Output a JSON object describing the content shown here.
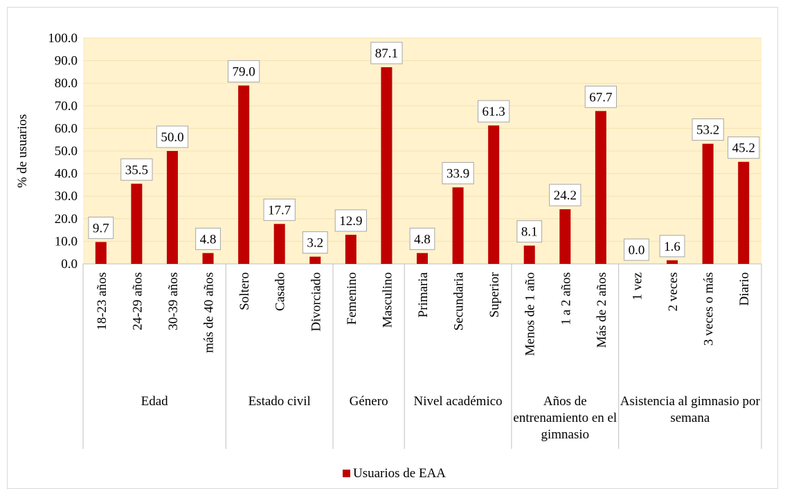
{
  "chart_data": {
    "type": "bar",
    "y_label": "% de usuarios",
    "groups": [
      {
        "name": "Edad",
        "categories": [
          "18-23 años",
          "24-29 años",
          "30-39 años",
          "más de 40 años"
        ]
      },
      {
        "name": "Estado civil",
        "categories": [
          "Soltero",
          "Casado",
          "Divorciado"
        ]
      },
      {
        "name": "Género",
        "categories": [
          "Femenino",
          "Masculino"
        ]
      },
      {
        "name": "Nivel académico",
        "categories": [
          "Primaria",
          "Secundaria",
          "Superior"
        ]
      },
      {
        "name": "Años de entrenamiento en el gimnasio",
        "categories": [
          "Menos de 1 año",
          "1 a 2 años",
          "Más de 2 años"
        ]
      },
      {
        "name": "Asistencia al gimnasio por semana",
        "categories": [
          "1 vez",
          "2 veces",
          "3 veces o más",
          "Diario"
        ]
      }
    ],
    "series": [
      {
        "name": "Usuarios de EAA",
        "color": "#c00000",
        "values": [
          9.7,
          35.5,
          50.0,
          4.8,
          79.0,
          17.7,
          3.2,
          12.9,
          87.1,
          4.8,
          33.9,
          61.3,
          8.1,
          24.2,
          67.7,
          0.0,
          1.6,
          53.2,
          45.2
        ],
        "value_labels": [
          "9.7",
          "35.5",
          "50.0",
          "4.8",
          "79.0",
          "17.7",
          "3.2",
          "12.9",
          "87.1",
          "4.8",
          "33.9",
          "61.3",
          "8.1",
          "24.2",
          "67.7",
          "0.0",
          "1.6",
          "53.2",
          "45.2"
        ]
      }
    ],
    "ylim": [
      0,
      100
    ],
    "yticks": [
      {
        "value": 0,
        "label": "0.0"
      },
      {
        "value": 10,
        "label": "10.0"
      },
      {
        "value": 20,
        "label": "20.0"
      },
      {
        "value": 30,
        "label": "30.0"
      },
      {
        "value": 40,
        "label": "40.0"
      },
      {
        "value": 50,
        "label": "50.0"
      },
      {
        "value": 60,
        "label": "60.0"
      },
      {
        "value": 70,
        "label": "70.0"
      },
      {
        "value": 80,
        "label": "80.0"
      },
      {
        "value": 90,
        "label": "90.0"
      },
      {
        "value": 100,
        "label": "100.0"
      }
    ],
    "plot_background": "#fff2cc",
    "grid": true,
    "legend": "bottom"
  }
}
